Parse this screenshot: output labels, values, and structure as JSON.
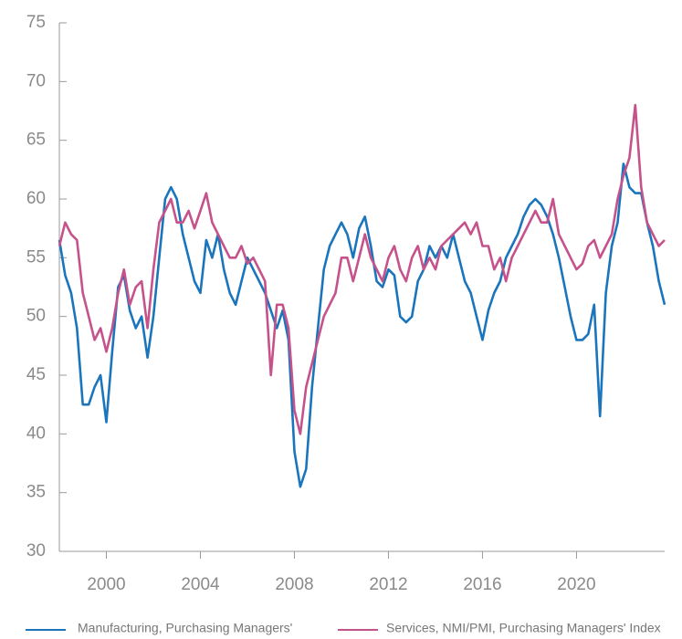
{
  "chart_data": {
    "type": "line",
    "x": [
      1998,
      1998.25,
      1998.5,
      1998.75,
      1999,
      1999.25,
      1999.5,
      1999.75,
      2000,
      2000.25,
      2000.5,
      2000.75,
      2001,
      2001.25,
      2001.5,
      2001.75,
      2002,
      2002.25,
      2002.5,
      2002.75,
      2003,
      2003.25,
      2003.5,
      2003.75,
      2004,
      2004.25,
      2004.5,
      2004.75,
      2005,
      2005.25,
      2005.5,
      2005.75,
      2006,
      2006.25,
      2006.5,
      2006.75,
      2007,
      2007.25,
      2007.5,
      2007.75,
      2008,
      2008.25,
      2008.5,
      2008.75,
      2009,
      2009.25,
      2009.5,
      2009.75,
      2010,
      2010.25,
      2010.5,
      2010.75,
      2011,
      2011.25,
      2011.5,
      2011.75,
      2012,
      2012.25,
      2012.5,
      2012.75,
      2013,
      2013.25,
      2013.5,
      2013.75,
      2014,
      2014.25,
      2014.5,
      2014.75,
      2015,
      2015.25,
      2015.5,
      2015.75,
      2016,
      2016.25,
      2016.5,
      2016.75,
      2017,
      2017.25,
      2017.5,
      2017.75,
      2018,
      2018.25,
      2018.5,
      2018.75,
      2019,
      2019.25,
      2019.5,
      2019.75,
      2020,
      2020.25,
      2020.5,
      2020.75,
      2021,
      2021.25,
      2021.5,
      2021.75,
      2022,
      2022.25,
      2022.5,
      2022.75,
      2023,
      2023.25,
      2023.5,
      2023.75
    ],
    "series": [
      {
        "name": "Manufacturing, Purchasing Managers'",
        "color": "#1a75bc",
        "values": [
          56.5,
          53.5,
          52,
          49,
          42.5,
          42.5,
          44,
          45,
          41,
          47,
          52.5,
          53.5,
          50.5,
          49,
          50,
          46.5,
          50,
          55,
          60,
          61,
          60,
          57,
          55,
          53,
          52,
          56.5,
          55,
          57,
          54,
          52,
          51,
          53,
          55,
          54,
          53,
          52,
          50.5,
          49,
          50.5,
          48,
          38.5,
          35.5,
          37,
          44,
          49,
          54,
          56,
          57,
          58,
          57,
          55,
          57.5,
          58.5,
          56,
          53,
          52.5,
          54,
          53.5,
          50,
          49.5,
          50,
          53,
          54,
          56,
          55,
          56,
          55,
          57,
          55,
          53,
          52,
          50,
          48,
          50.5,
          52,
          53,
          55,
          56,
          57,
          58.5,
          59.5,
          60,
          59.5,
          58.5,
          57,
          55,
          52.5,
          50,
          48,
          48,
          48.5,
          51,
          41.5,
          52,
          56,
          58,
          63,
          61,
          60.5,
          60.5,
          58,
          56,
          53,
          51
        ]
      },
      {
        "name": "Services, NMI/PMI, Purchasing Managers' Index",
        "color": "#c5528a",
        "values": [
          56,
          58,
          57,
          56.5,
          52,
          50,
          48,
          49,
          47,
          49,
          52,
          54,
          51,
          52.5,
          53,
          49,
          54,
          58,
          59,
          60,
          58,
          58,
          59,
          57.5,
          59,
          60.5,
          58,
          57,
          56,
          55,
          55,
          56,
          54.5,
          55,
          54,
          53,
          45,
          51,
          51,
          49,
          42,
          40,
          44,
          46,
          48,
          50,
          51,
          52,
          55,
          55,
          53,
          55,
          57,
          55,
          54,
          53,
          55,
          56,
          54,
          53,
          55,
          56,
          54,
          55,
          54,
          56,
          56.5,
          57,
          57.5,
          58,
          57,
          58,
          56,
          56,
          54,
          55,
          53,
          55,
          56,
          57,
          58,
          59,
          58,
          58,
          60,
          57,
          56,
          55,
          54,
          54.5,
          56,
          56.5,
          55,
          56,
          57,
          60,
          62,
          63.5,
          68,
          61,
          58,
          57,
          56,
          56.5
        ]
      }
    ],
    "xlim": [
      1998,
      2023.75
    ],
    "xticks": [
      2000,
      2004,
      2008,
      2012,
      2016,
      2020
    ],
    "ylim": [
      30,
      75
    ],
    "yticks": [
      30,
      35,
      40,
      45,
      50,
      55,
      60,
      65,
      70,
      75
    ],
    "legend": "bottom"
  }
}
